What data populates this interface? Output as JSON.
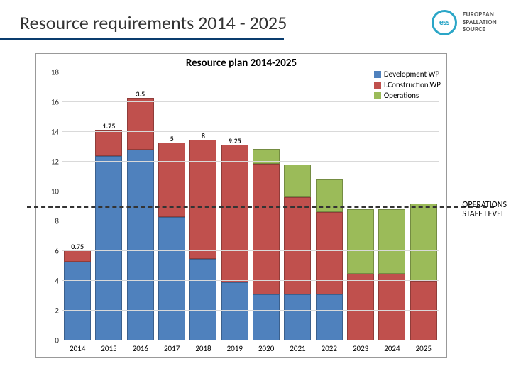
{
  "slide": {
    "title": "Resource requirements 2014 - 2025",
    "logo_text_l1": "EUROPEAN",
    "logo_text_l2": "SPALLATION",
    "logo_text_l3": "SOURCE",
    "logo_abbrev": "ess",
    "underline_color": "#0a3c6e",
    "logo_ring_color": "#2ba6c7"
  },
  "chart": {
    "type": "stacked-bar",
    "title": "Resource plan 2014-2025",
    "title_fontsize": 15,
    "background_color": "#ffffff",
    "grid_color": "#d9d9d9",
    "border_color": "#999999",
    "ylim": [
      0,
      18
    ],
    "ytick_step": 2,
    "categories": [
      "2014",
      "2015",
      "2016",
      "2017",
      "2018",
      "2019",
      "2020",
      "2021",
      "2022",
      "2023",
      "2024",
      "2025"
    ],
    "series": [
      {
        "name": "Development WP",
        "color": "#4f81bd"
      },
      {
        "name": "I.Construction.WP",
        "color": "#c0504d"
      },
      {
        "name": "Operations",
        "color": "#9bbb59"
      }
    ],
    "data": [
      {
        "dev": 5.3,
        "con": 0.75,
        "ops": 0
      },
      {
        "dev": 12.4,
        "con": 1.75,
        "ops": 0
      },
      {
        "dev": 12.8,
        "con": 3.5,
        "ops": 0
      },
      {
        "dev": 8.3,
        "con": 5,
        "ops": 0
      },
      {
        "dev": 5.5,
        "con": 8,
        "ops": 0
      },
      {
        "dev": 3.9,
        "con": 9.25,
        "ops": 0
      },
      {
        "dev": 3.1,
        "con": 8.75,
        "ops": 1.0
      },
      {
        "dev": 3.1,
        "con": 6.5,
        "ops": 2.2
      },
      {
        "dev": 3.1,
        "con": 5.5,
        "ops": 2.2
      },
      {
        "dev": 0.0,
        "con": 4.5,
        "ops": 4.3
      },
      {
        "dev": 0.0,
        "con": 4.5,
        "ops": 4.3
      },
      {
        "dev": 0.0,
        "con": 4,
        "ops": 5.2
      }
    ],
    "label_fontsize": 10,
    "axis_fontsize": 11
  },
  "annotation": {
    "ops_line_value": 9,
    "label_l1": "OPERATIONS",
    "label_l2": "STAFF LEVEL"
  }
}
